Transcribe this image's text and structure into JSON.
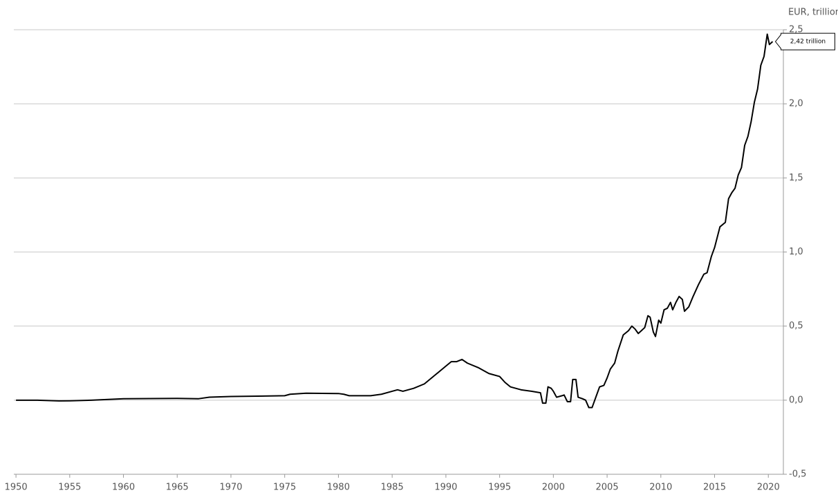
{
  "chart_data": {
    "type": "line",
    "y_axis_label": "EUR, trillion",
    "annotation": "2,42 trillion",
    "color": "#000000",
    "grid": true,
    "xlim": [
      1949.8,
      2021.4
    ],
    "ylim": [
      -0.5,
      2.5
    ],
    "xticks": [
      1950,
      1955,
      1960,
      1965,
      1970,
      1975,
      1980,
      1985,
      1990,
      1995,
      2000,
      2005,
      2010,
      2015,
      2020
    ],
    "yticks": [
      {
        "value": 2.5,
        "label": "2,5"
      },
      {
        "value": 2.0,
        "label": "2,0"
      },
      {
        "value": 1.5,
        "label": "1,5"
      },
      {
        "value": 1.0,
        "label": "1,0"
      },
      {
        "value": 0.5,
        "label": "0,5"
      },
      {
        "value": 0.0,
        "label": "0,0"
      },
      {
        "value": -0.5,
        "label": "-0,5"
      }
    ],
    "x": [
      1950,
      1952,
      1954,
      1955,
      1957,
      1960,
      1965,
      1967,
      1968,
      1970,
      1975,
      1975.5,
      1977,
      1980,
      1980.5,
      1981,
      1983,
      1984,
      1985,
      1985.5,
      1986,
      1987,
      1988,
      1989,
      1989.5,
      1990,
      1990.5,
      1991,
      1991.5,
      1992,
      1993,
      1994,
      1995,
      1995.5,
      1996,
      1997,
      1998,
      1998.8,
      1999,
      1999.3,
      1999.5,
      1999.8,
      2000,
      2000.3,
      2000.8,
      2001,
      2001.3,
      2001.6,
      2001.8,
      2002.1,
      2002.3,
      2002.7,
      2003,
      2003.3,
      2003.6,
      2004,
      2004.3,
      2004.7,
      2005,
      2005.3,
      2005.7,
      2006,
      2006.5,
      2007,
      2007.3,
      2007.6,
      2007.9,
      2008.2,
      2008.5,
      2008.8,
      2009,
      2009.3,
      2009.5,
      2009.8,
      2010,
      2010.3,
      2010.6,
      2010.9,
      2011.1,
      2011.4,
      2011.7,
      2012,
      2012.2,
      2012.6,
      2013,
      2013.5,
      2014,
      2014.3,
      2014.7,
      2015,
      2015.5,
      2016,
      2016.3,
      2016.6,
      2016.9,
      2017.2,
      2017.5,
      2017.8,
      2018.1,
      2018.4,
      2018.7,
      2019,
      2019.3,
      2019.6,
      2019.9,
      2020.1,
      2020.4
    ],
    "values": [
      0.0,
      0.0,
      -0.005,
      -0.004,
      0.0,
      0.01,
      0.012,
      0.01,
      0.02,
      0.025,
      0.03,
      0.04,
      0.047,
      0.045,
      0.04,
      0.03,
      0.03,
      0.04,
      0.06,
      0.07,
      0.06,
      0.08,
      0.11,
      0.17,
      0.2,
      0.23,
      0.26,
      0.26,
      0.275,
      0.25,
      0.22,
      0.18,
      0.16,
      0.12,
      0.09,
      0.07,
      0.06,
      0.05,
      -0.02,
      -0.02,
      0.09,
      0.08,
      0.06,
      0.02,
      0.03,
      0.035,
      -0.01,
      -0.01,
      0.14,
      0.14,
      0.02,
      0.01,
      0.0,
      -0.05,
      -0.05,
      0.03,
      0.09,
      0.1,
      0.15,
      0.21,
      0.25,
      0.33,
      0.44,
      0.47,
      0.5,
      0.48,
      0.45,
      0.47,
      0.49,
      0.57,
      0.56,
      0.46,
      0.43,
      0.54,
      0.52,
      0.61,
      0.62,
      0.66,
      0.61,
      0.66,
      0.7,
      0.68,
      0.6,
      0.63,
      0.7,
      0.78,
      0.85,
      0.86,
      0.97,
      1.03,
      1.17,
      1.2,
      1.36,
      1.4,
      1.43,
      1.52,
      1.57,
      1.72,
      1.78,
      1.88,
      2.01,
      2.1,
      2.26,
      2.32,
      2.47,
      2.4,
      2.42
    ]
  }
}
